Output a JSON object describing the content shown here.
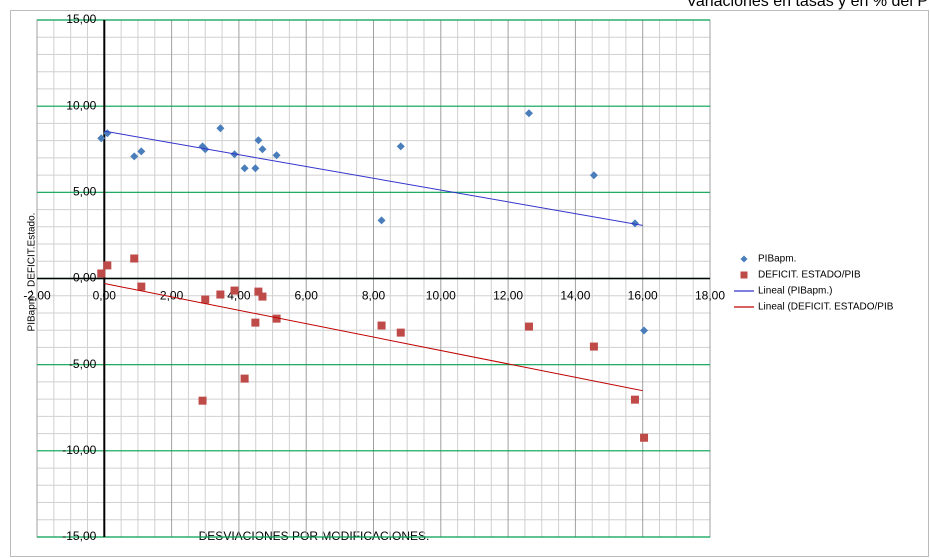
{
  "chart_data": {
    "type": "scatter",
    "title": "Variaciones en tasas y en % del P",
    "x_label": "DESVIACIONES POR MODIFICACIONES.",
    "y_label": "PIBapm  -  DEFICIT.Estado.",
    "xlim": [
      -2,
      18
    ],
    "ylim": [
      -15,
      15
    ],
    "xticks": [
      {
        "value": -2,
        "label": "-2,00"
      },
      {
        "value": 0,
        "label": "0,00"
      },
      {
        "value": 2,
        "label": "2,00"
      },
      {
        "value": 4,
        "label": "4,00"
      },
      {
        "value": 6,
        "label": "6,00"
      },
      {
        "value": 8,
        "label": "8,00"
      },
      {
        "value": 10,
        "label": "10,00"
      },
      {
        "value": 12,
        "label": "12,00"
      },
      {
        "value": 14,
        "label": "14,00"
      },
      {
        "value": 16,
        "label": "16,00"
      },
      {
        "value": 18,
        "label": "18,00"
      }
    ],
    "yticks": [
      {
        "value": -15,
        "label": "-15,00"
      },
      {
        "value": -10,
        "label": "-10,00"
      },
      {
        "value": -5,
        "label": "-5,00"
      },
      {
        "value": 0,
        "label": "0,00"
      },
      {
        "value": 5,
        "label": "5,00"
      },
      {
        "value": 10,
        "label": "10,00"
      },
      {
        "value": 15,
        "label": "15,00"
      }
    ],
    "grid": true,
    "legend": "right",
    "series": [
      {
        "name": "PIBapm.",
        "color": "#4a7ebb",
        "marker": "diamond",
        "x": [
          -0.09,
          0.09,
          0.89,
          1.1,
          2.92,
          3.0,
          3.45,
          3.87,
          4.17,
          4.49,
          4.58,
          4.7,
          5.12,
          8.24,
          8.81,
          12.62,
          14.55,
          15.77,
          16.04
        ],
        "values": [
          8.14,
          8.43,
          7.09,
          7.38,
          7.67,
          7.5,
          8.72,
          7.21,
          6.4,
          6.4,
          8.02,
          7.5,
          7.15,
          3.37,
          7.67,
          9.59,
          5.99,
          3.2,
          -3.02
        ]
      },
      {
        "name": "DEFICIT. ESTADO/PIB",
        "color": "#be4b48",
        "marker": "square",
        "x": [
          -0.09,
          0.09,
          0.89,
          1.1,
          2.92,
          3.0,
          3.45,
          3.87,
          4.17,
          4.49,
          4.58,
          4.7,
          5.12,
          8.24,
          8.81,
          12.62,
          14.55,
          15.77,
          16.04
        ],
        "values": [
          0.29,
          0.76,
          1.16,
          -0.47,
          -7.09,
          -1.22,
          -0.93,
          -0.7,
          -5.81,
          -2.56,
          -0.76,
          -1.05,
          -2.33,
          -2.73,
          -3.14,
          -2.79,
          -3.95,
          -7.03,
          -9.24
        ]
      },
      {
        "name": "Lineal (PIBapm.)",
        "color": "#3333cc",
        "marker": "line",
        "x": [
          0,
          16
        ],
        "values": [
          8.55,
          3.08
        ]
      },
      {
        "name": "Lineal (DEFICIT. ESTADO/PIB",
        "color": "#c00000",
        "marker": "line",
        "x": [
          0,
          16
        ],
        "values": [
          -0.29,
          -6.51
        ]
      }
    ]
  }
}
